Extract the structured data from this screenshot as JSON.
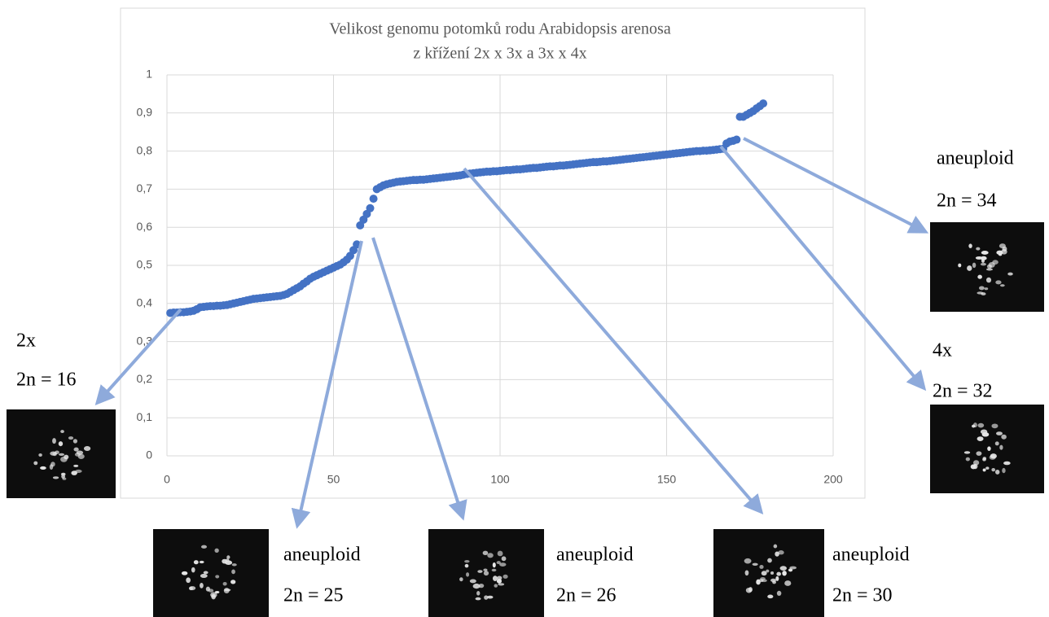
{
  "chart_data": {
    "type": "scatter",
    "title": [
      "Velikost genomu potomků rodu Arabidopsis arenosa",
      "z křížení 2x x 3x a 3x x 4x"
    ],
    "x": [
      1,
      2,
      3,
      4,
      5,
      6,
      7,
      8,
      9,
      10,
      11,
      12,
      13,
      14,
      15,
      16,
      17,
      18,
      19,
      20,
      21,
      22,
      23,
      24,
      25,
      26,
      27,
      28,
      29,
      30,
      31,
      32,
      33,
      34,
      35,
      36,
      37,
      38,
      39,
      40,
      41,
      42,
      43,
      44,
      45,
      46,
      47,
      48,
      49,
      50,
      51,
      52,
      53,
      54,
      55,
      56,
      57,
      58,
      59,
      60,
      61,
      62,
      63,
      64,
      65,
      66,
      67,
      68,
      69,
      70,
      71,
      72,
      73,
      74,
      75,
      76,
      77,
      78,
      79,
      80,
      81,
      82,
      83,
      84,
      85,
      86,
      87,
      88,
      89,
      90,
      91,
      92,
      93,
      94,
      95,
      96,
      97,
      98,
      99,
      100,
      101,
      102,
      103,
      104,
      105,
      106,
      107,
      108,
      109,
      110,
      111,
      112,
      113,
      114,
      115,
      116,
      117,
      118,
      119,
      120,
      121,
      122,
      123,
      124,
      125,
      126,
      127,
      128,
      129,
      130,
      131,
      132,
      133,
      134,
      135,
      136,
      137,
      138,
      139,
      140,
      141,
      142,
      143,
      144,
      145,
      146,
      147,
      148,
      149,
      150,
      151,
      152,
      153,
      154,
      155,
      156,
      157,
      158,
      159,
      160,
      161,
      162,
      163,
      164,
      165,
      166,
      167,
      168,
      169,
      170,
      171,
      172,
      173,
      174,
      175,
      176,
      177,
      178,
      179
    ],
    "values": [
      0.375,
      0.376,
      0.376,
      0.377,
      0.377,
      0.378,
      0.379,
      0.381,
      0.385,
      0.39,
      0.391,
      0.392,
      0.393,
      0.393,
      0.394,
      0.394,
      0.395,
      0.396,
      0.398,
      0.4,
      0.402,
      0.404,
      0.406,
      0.408,
      0.41,
      0.412,
      0.413,
      0.414,
      0.415,
      0.416,
      0.417,
      0.418,
      0.419,
      0.42,
      0.422,
      0.425,
      0.43,
      0.435,
      0.44,
      0.445,
      0.452,
      0.458,
      0.465,
      0.47,
      0.474,
      0.478,
      0.482,
      0.486,
      0.49,
      0.494,
      0.498,
      0.502,
      0.508,
      0.515,
      0.525,
      0.54,
      0.555,
      0.605,
      0.62,
      0.635,
      0.65,
      0.675,
      0.7,
      0.705,
      0.71,
      0.713,
      0.715,
      0.717,
      0.719,
      0.72,
      0.721,
      0.722,
      0.723,
      0.724,
      0.724,
      0.725,
      0.725,
      0.726,
      0.727,
      0.728,
      0.729,
      0.73,
      0.731,
      0.732,
      0.733,
      0.734,
      0.735,
      0.736,
      0.738,
      0.74,
      0.741,
      0.742,
      0.743,
      0.744,
      0.745,
      0.746,
      0.746,
      0.747,
      0.747,
      0.748,
      0.749,
      0.75,
      0.75,
      0.751,
      0.752,
      0.752,
      0.753,
      0.754,
      0.755,
      0.756,
      0.756,
      0.757,
      0.758,
      0.759,
      0.76,
      0.76,
      0.761,
      0.762,
      0.762,
      0.763,
      0.764,
      0.765,
      0.766,
      0.767,
      0.768,
      0.769,
      0.77,
      0.771,
      0.771,
      0.772,
      0.773,
      0.773,
      0.774,
      0.775,
      0.776,
      0.777,
      0.778,
      0.779,
      0.78,
      0.781,
      0.782,
      0.783,
      0.784,
      0.785,
      0.786,
      0.787,
      0.788,
      0.789,
      0.79,
      0.791,
      0.792,
      0.793,
      0.794,
      0.795,
      0.796,
      0.797,
      0.798,
      0.799,
      0.8,
      0.8,
      0.801,
      0.801,
      0.802,
      0.803,
      0.804,
      0.805,
      0.806,
      0.82,
      0.825,
      0.827,
      0.83,
      0.89,
      0.89,
      0.895,
      0.9,
      0.905,
      0.912,
      0.918,
      0.925
    ],
    "color": "#4472c4",
    "xlim": [
      0,
      200
    ],
    "ylim": [
      0,
      1
    ],
    "xticks": [
      0,
      50,
      100,
      150,
      200
    ],
    "yticks": [
      0,
      {
        "value": 0.1,
        "label": "0,1"
      },
      {
        "value": 0.2,
        "label": "0,2"
      },
      {
        "value": 0.3,
        "label": "0,3"
      },
      {
        "value": 0.4,
        "label": "0,4"
      },
      {
        "value": 0.5,
        "label": "0,5"
      },
      {
        "value": 0.6,
        "label": "0,6"
      },
      {
        "value": 0.7,
        "label": "0,7"
      },
      {
        "value": 0.8,
        "label": "0,8"
      },
      {
        "value": 0.9,
        "label": "0,9"
      },
      1
    ],
    "grid": true,
    "annotations": [
      {
        "lines": [
          "2x",
          "2n = 16"
        ]
      },
      {
        "lines": [
          "aneuploid",
          "2n = 25"
        ]
      },
      {
        "lines": [
          "aneuploid",
          "2n = 26"
        ]
      },
      {
        "lines": [
          "aneuploid",
          "2n = 30"
        ]
      },
      {
        "lines": [
          "4x",
          "2n = 32"
        ]
      },
      {
        "lines": [
          "aneuploid",
          "2n = 34"
        ]
      }
    ]
  }
}
